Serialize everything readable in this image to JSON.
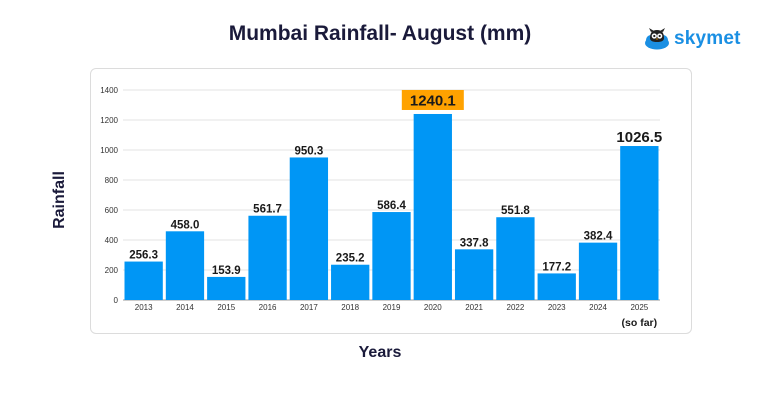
{
  "brand": {
    "name": "skymet",
    "icon": "owl-cloud-icon"
  },
  "colors": {
    "bar": "#0096f5",
    "highlight": "#ffa200",
    "brand": "#1a8fe3"
  },
  "chart_data": {
    "type": "bar",
    "title": "Mumbai Rainfall- August (mm)",
    "xlabel": "Years",
    "ylabel": "Rainfall",
    "categories": [
      "2013",
      "2014",
      "2015",
      "2016",
      "2017",
      "2018",
      "2019",
      "2020",
      "2021",
      "2022",
      "2023",
      "2024",
      "2025"
    ],
    "values": [
      256.3,
      458.0,
      153.9,
      561.7,
      950.3,
      235.2,
      586.4,
      1240.1,
      337.8,
      551.8,
      177.2,
      382.4,
      1026.5
    ],
    "value_labels": [
      "256.3",
      "458.0",
      "153.9",
      "561.7",
      "950.3",
      "235.2",
      "586.4",
      "1240.1",
      "337.8",
      "551.8",
      "177.2",
      "382.4",
      "1026.5"
    ],
    "y_ticks": [
      0,
      200,
      400,
      600,
      800,
      1000,
      1200,
      1400
    ],
    "ylim": [
      0,
      1400
    ],
    "grid": true,
    "highlight_index": 7,
    "emphasis_index": 12,
    "category_note": "(so far)",
    "category_note_index": 12
  }
}
